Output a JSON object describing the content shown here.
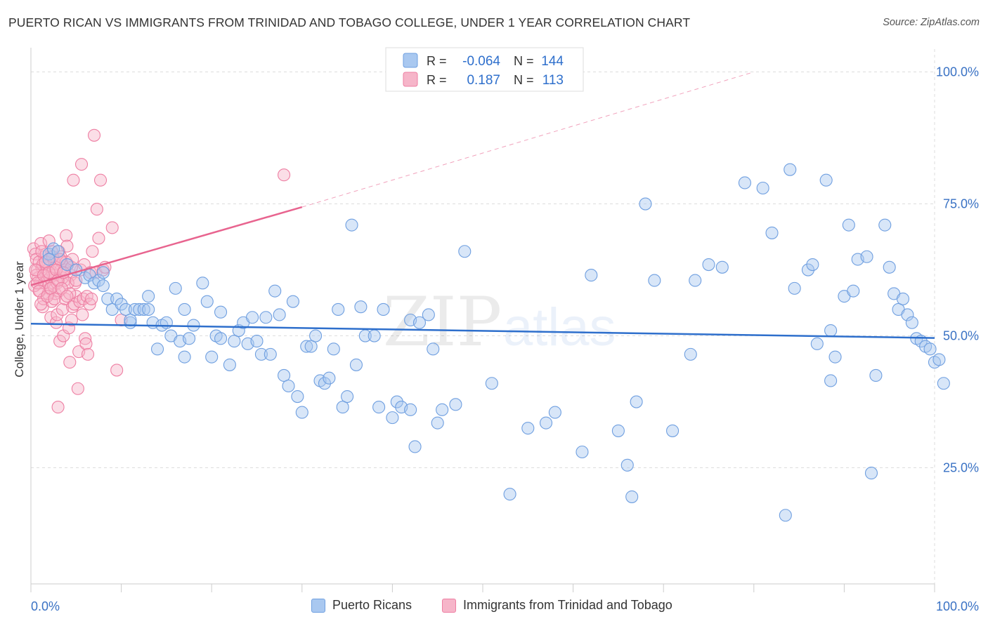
{
  "title": "PUERTO RICAN VS IMMIGRANTS FROM TRINIDAD AND TOBAGO COLLEGE, UNDER 1 YEAR CORRELATION CHART",
  "source": "Source: ZipAtlas.com",
  "watermark": {
    "zip": "ZIP",
    "atlas": "atlas"
  },
  "legend_top": [
    {
      "r_label": "R =",
      "r_value": "-0.064",
      "n_label": "N =",
      "n_value": "144"
    },
    {
      "r_label": "R =",
      "r_value": "0.187",
      "n_label": "N =",
      "n_value": "113"
    }
  ],
  "legend_bottom": [
    "Puerto Ricans",
    "Immigrants from Trinidad and Tobago"
  ],
  "colors": {
    "blue_fill": "#a9c8f0",
    "blue_stroke": "#6f9fe0",
    "blue_line": "#2e6fcc",
    "pink_fill": "#f6b5c9",
    "pink_stroke": "#ee7fa3",
    "pink_line": "#e8648f",
    "axis_label": "#3a72c4",
    "grid": "#dddddd"
  },
  "chart_data": {
    "type": "scatter",
    "title": "PUERTO RICAN VS IMMIGRANTS FROM TRINIDAD AND TOBAGO COLLEGE, UNDER 1 YEAR CORRELATION CHART",
    "xlabel": "",
    "ylabel": "College, Under 1 year",
    "xlim": [
      0,
      100
    ],
    "ylim": [
      3,
      103
    ],
    "x_tick_labels": [
      "0.0%",
      "100.0%"
    ],
    "y_tick_values": [
      25,
      50,
      75,
      100
    ],
    "y_tick_labels": [
      "25.0%",
      "50.0%",
      "75.0%",
      "100.0%"
    ],
    "grid": true,
    "series": [
      {
        "name": "Puerto Ricans",
        "r": -0.064,
        "n": 144,
        "trend": {
          "x": [
            0,
            100
          ],
          "y": [
            52.3,
            49.6
          ],
          "dashed_after": null
        },
        "points": [
          [
            2,
            65.5
          ],
          [
            2.5,
            66.5
          ],
          [
            2,
            64.5
          ],
          [
            3,
            66
          ],
          [
            4,
            63.5
          ],
          [
            5,
            62.5
          ],
          [
            6,
            61
          ],
          [
            6.5,
            61.5
          ],
          [
            7,
            60
          ],
          [
            7.5,
            60.5
          ],
          [
            8,
            59.5
          ],
          [
            8,
            62
          ],
          [
            8.5,
            57
          ],
          [
            9,
            55
          ],
          [
            9.5,
            57
          ],
          [
            10,
            56
          ],
          [
            10.5,
            55
          ],
          [
            11,
            52.5
          ],
          [
            11,
            53
          ],
          [
            11.5,
            55
          ],
          [
            12,
            55
          ],
          [
            12.5,
            55
          ],
          [
            13,
            57.5
          ],
          [
            13,
            55
          ],
          [
            13.5,
            52.5
          ],
          [
            14,
            47.5
          ],
          [
            14.5,
            52
          ],
          [
            15,
            52.5
          ],
          [
            15.5,
            50
          ],
          [
            16,
            59
          ],
          [
            16.5,
            49
          ],
          [
            17,
            55
          ],
          [
            17,
            46
          ],
          [
            17.5,
            49.5
          ],
          [
            18,
            52
          ],
          [
            19,
            60
          ],
          [
            19.5,
            56.5
          ],
          [
            20,
            46
          ],
          [
            20.5,
            50
          ],
          [
            21,
            54.5
          ],
          [
            21,
            49.5
          ],
          [
            22,
            44.5
          ],
          [
            22.5,
            49
          ],
          [
            23,
            51
          ],
          [
            23.5,
            52.5
          ],
          [
            24,
            48.5
          ],
          [
            24.5,
            53.5
          ],
          [
            25,
            49
          ],
          [
            25.5,
            46.5
          ],
          [
            26,
            53.5
          ],
          [
            26.5,
            46.5
          ],
          [
            27,
            58.5
          ],
          [
            27.5,
            54
          ],
          [
            28,
            42.5
          ],
          [
            28.5,
            40.5
          ],
          [
            29,
            56.5
          ],
          [
            29.5,
            38.5
          ],
          [
            30,
            35.5
          ],
          [
            30.5,
            48
          ],
          [
            31,
            48
          ],
          [
            31.5,
            50
          ],
          [
            32,
            41.5
          ],
          [
            32.5,
            41
          ],
          [
            33,
            42
          ],
          [
            33.5,
            47.5
          ],
          [
            34,
            55
          ],
          [
            34.5,
            36.5
          ],
          [
            35,
            38.5
          ],
          [
            35.5,
            71
          ],
          [
            36,
            44.5
          ],
          [
            36.5,
            55.5
          ],
          [
            37,
            50
          ],
          [
            38,
            50
          ],
          [
            38.5,
            36.5
          ],
          [
            39,
            55
          ],
          [
            40,
            34.5
          ],
          [
            40.5,
            37.5
          ],
          [
            41,
            36.5
          ],
          [
            42,
            36
          ],
          [
            42.5,
            29
          ],
          [
            42,
            53
          ],
          [
            43,
            52.5
          ],
          [
            44,
            54
          ],
          [
            44.5,
            47.5
          ],
          [
            45,
            33.5
          ],
          [
            45.5,
            36
          ],
          [
            47,
            37
          ],
          [
            48,
            66
          ],
          [
            51,
            41
          ],
          [
            53,
            20
          ],
          [
            55,
            32.5
          ],
          [
            57,
            33.5
          ],
          [
            58,
            35.5
          ],
          [
            61,
            28
          ],
          [
            62,
            61.5
          ],
          [
            65,
            32
          ],
          [
            66,
            25.5
          ],
          [
            66.5,
            19.5
          ],
          [
            67,
            37.5
          ],
          [
            68,
            75
          ],
          [
            69,
            60.5
          ],
          [
            71,
            32
          ],
          [
            73,
            46.5
          ],
          [
            73.5,
            60.5
          ],
          [
            75,
            63.5
          ],
          [
            76.5,
            63
          ],
          [
            79,
            79
          ],
          [
            81,
            78
          ],
          [
            82,
            69.5
          ],
          [
            83.5,
            16
          ],
          [
            84,
            81.5
          ],
          [
            84.5,
            59
          ],
          [
            86,
            62.5
          ],
          [
            86.5,
            63.5
          ],
          [
            87,
            48.5
          ],
          [
            88,
            79.5
          ],
          [
            88.5,
            51
          ],
          [
            88.5,
            41.5
          ],
          [
            89,
            46
          ],
          [
            90,
            57.5
          ],
          [
            90.5,
            71
          ],
          [
            91,
            58.5
          ],
          [
            91.5,
            64.5
          ],
          [
            92.5,
            65
          ],
          [
            93,
            24
          ],
          [
            93.5,
            42.5
          ],
          [
            94.5,
            71
          ],
          [
            95,
            63
          ],
          [
            95.5,
            58
          ],
          [
            96,
            55
          ],
          [
            96.5,
            57
          ],
          [
            97,
            54
          ],
          [
            97.5,
            52.5
          ],
          [
            98,
            49.5
          ],
          [
            98.5,
            49
          ],
          [
            99,
            48
          ],
          [
            99.5,
            47.5
          ],
          [
            100,
            45
          ],
          [
            100.5,
            45.5
          ],
          [
            101,
            41
          ]
        ]
      },
      {
        "name": "Immigrants from Trinidad and Tobago",
        "r": 0.187,
        "n": 113,
        "trend": {
          "x": [
            0,
            30,
            80
          ],
          "y": [
            59.6,
            74.4,
            100
          ],
          "dashed_after": 30
        },
        "points": [
          [
            0.3,
            66.5
          ],
          [
            0.5,
            65.5
          ],
          [
            0.6,
            64.5
          ],
          [
            0.7,
            62.5
          ],
          [
            0.8,
            61
          ],
          [
            1,
            60
          ],
          [
            1,
            58.5
          ],
          [
            1.1,
            67.5
          ],
          [
            1.2,
            63
          ],
          [
            1.3,
            55.5
          ],
          [
            1.4,
            57
          ],
          [
            1.5,
            65
          ],
          [
            1.6,
            62
          ],
          [
            1.8,
            60.5
          ],
          [
            1.9,
            63.5
          ],
          [
            2,
            68
          ],
          [
            2.1,
            59
          ],
          [
            2.2,
            53.5
          ],
          [
            2.3,
            56.5
          ],
          [
            2.4,
            62
          ],
          [
            2.5,
            64.5
          ],
          [
            2.6,
            61.5
          ],
          [
            2.7,
            58
          ],
          [
            2.8,
            52.5
          ],
          [
            2.9,
            54
          ],
          [
            3,
            36.5
          ],
          [
            3.1,
            66
          ],
          [
            3.2,
            49
          ],
          [
            3.3,
            62.5
          ],
          [
            3.4,
            64
          ],
          [
            3.5,
            55
          ],
          [
            3.6,
            50
          ],
          [
            3.7,
            60.5
          ],
          [
            3.8,
            57
          ],
          [
            3.9,
            69
          ],
          [
            4,
            67
          ],
          [
            4.1,
            63.5
          ],
          [
            4.2,
            51.5
          ],
          [
            4.3,
            45
          ],
          [
            4.4,
            61.5
          ],
          [
            4.5,
            53
          ],
          [
            4.6,
            55.5
          ],
          [
            4.7,
            79.5
          ],
          [
            4.8,
            56
          ],
          [
            4.9,
            60
          ],
          [
            5,
            57.5
          ],
          [
            5.2,
            40
          ],
          [
            5.3,
            47
          ],
          [
            5.4,
            56.5
          ],
          [
            5.5,
            62.5
          ],
          [
            5.6,
            82.5
          ],
          [
            5.7,
            54
          ],
          [
            5.8,
            57
          ],
          [
            5.9,
            63.5
          ],
          [
            6,
            49.5
          ],
          [
            6.1,
            48.5
          ],
          [
            6.2,
            57.5
          ],
          [
            6.3,
            46.5
          ],
          [
            6.5,
            56
          ],
          [
            6.6,
            62
          ],
          [
            6.7,
            57
          ],
          [
            6.8,
            66
          ],
          [
            7,
            88
          ],
          [
            7.2,
            62
          ],
          [
            7.3,
            74
          ],
          [
            7.5,
            68.5
          ],
          [
            7.7,
            79.5
          ],
          [
            8,
            62.5
          ],
          [
            8.2,
            63
          ],
          [
            9,
            70.5
          ],
          [
            9.5,
            43.5
          ],
          [
            10,
            53
          ],
          [
            0.4,
            59.5
          ],
          [
            0.6,
            61.5
          ],
          [
            0.9,
            64
          ],
          [
            1.1,
            56
          ],
          [
            1.3,
            63.5
          ],
          [
            1.5,
            60
          ],
          [
            1.7,
            65.5
          ],
          [
            1.9,
            58
          ],
          [
            2.1,
            61
          ],
          [
            2.3,
            66
          ],
          [
            2.5,
            59.5
          ],
          [
            2.7,
            63
          ],
          [
            2.9,
            60
          ],
          [
            3.1,
            58.5
          ],
          [
            3.3,
            65
          ],
          [
            3.5,
            61
          ],
          [
            3.7,
            62.5
          ],
          [
            3.9,
            64
          ],
          [
            4.1,
            60
          ],
          [
            4.3,
            58
          ],
          [
            4.5,
            63
          ],
          [
            0.5,
            62.5
          ],
          [
            0.7,
            60
          ],
          [
            0.9,
            58.5
          ],
          [
            1.2,
            66
          ],
          [
            1.4,
            61.5
          ],
          [
            1.6,
            64
          ],
          [
            1.8,
            57.5
          ],
          [
            2,
            62
          ],
          [
            2.2,
            59
          ],
          [
            2.4,
            65
          ],
          [
            2.6,
            57
          ],
          [
            2.8,
            62.5
          ],
          [
            3,
            60.5
          ],
          [
            3.2,
            64.5
          ],
          [
            3.4,
            59
          ],
          [
            3.6,
            62
          ],
          [
            4,
            57.5
          ],
          [
            4.6,
            64.5
          ],
          [
            5,
            60.5
          ],
          [
            28,
            80.5
          ]
        ]
      }
    ]
  }
}
